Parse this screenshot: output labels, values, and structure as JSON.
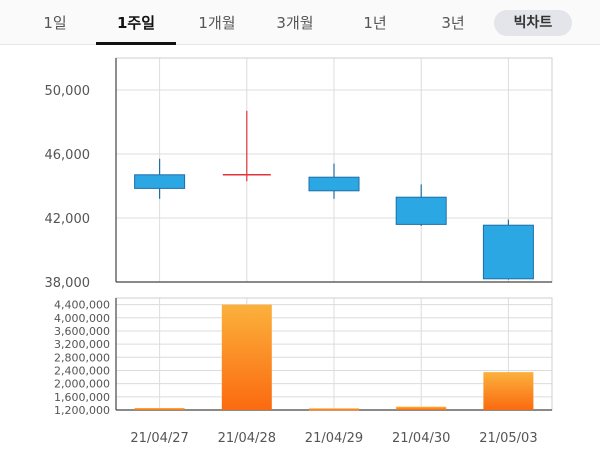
{
  "tabs": [
    {
      "label": "1일",
      "active": false
    },
    {
      "label": "1주일",
      "active": true
    },
    {
      "label": "1개월",
      "active": false
    },
    {
      "label": "3개월",
      "active": false
    },
    {
      "label": "1년",
      "active": false
    },
    {
      "label": "3년",
      "active": false
    }
  ],
  "bigchart_label": "빅차트",
  "chart_data": [
    {
      "type": "candlestick",
      "title": "",
      "categories": [
        "21/04/27",
        "21/04/28",
        "21/04/29",
        "21/04/30",
        "21/05/03"
      ],
      "series": [
        {
          "open": 43850,
          "close": 44700,
          "high": 45700,
          "low": 43200
        },
        {
          "open": 44700,
          "close": 44700,
          "high": 48700,
          "low": 44300
        },
        {
          "open": 44550,
          "close": 43700,
          "high": 45400,
          "low": 43200
        },
        {
          "open": 43300,
          "close": 41600,
          "high": 44100,
          "low": 41500
        },
        {
          "open": 41550,
          "close": 38200,
          "high": 41900,
          "low": 38150
        }
      ],
      "ylim": [
        38000,
        52000
      ],
      "yticks": [
        38000,
        42000,
        46000,
        50000
      ],
      "ytick_labels": [
        "38,000",
        "42,000",
        "46,000",
        "50,000"
      ],
      "colors": {
        "down": "#2ba7e3",
        "down_edge": "#1e6fa8",
        "flat": "#e0343a",
        "grid": "#dcdcdc"
      },
      "grid": true
    },
    {
      "type": "bar",
      "title": "",
      "categories": [
        "21/04/27",
        "21/04/28",
        "21/04/29",
        "21/04/30",
        "21/05/03"
      ],
      "values": [
        1260000,
        4400000,
        1250000,
        1300000,
        2350000
      ],
      "ylim": [
        1200000,
        4600000
      ],
      "yticks": [
        1200000,
        1600000,
        2000000,
        2400000,
        2800000,
        3200000,
        3600000,
        4000000,
        4400000
      ],
      "ytick_labels": [
        "1,200,000",
        "1,600,000",
        "2,000,000",
        "2,400,000",
        "2,800,000",
        "3,200,000",
        "3,600,000",
        "4,000,000",
        "4,400,000"
      ],
      "colors": {
        "bar_top": "#fbb13c",
        "bar_bottom": "#fb6a10",
        "grid": "#dcdcdc"
      },
      "grid": true
    }
  ]
}
